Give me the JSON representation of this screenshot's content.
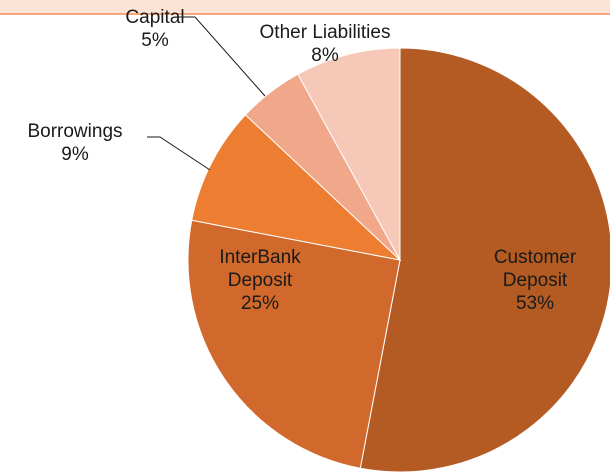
{
  "chart_data": {
    "type": "pie",
    "categories": [
      "Customer Deposit",
      "InterBank Deposit",
      "Borrowings",
      "Capital",
      "Other Liabilities"
    ],
    "values": [
      53,
      25,
      9,
      5,
      8
    ],
    "value_labels": [
      "53%",
      "25%",
      "9%",
      "5%",
      "8%"
    ],
    "colors": [
      "#b35b23",
      "#d0692b",
      "#ed7d31",
      "#f1a78a",
      "#f6c8b8"
    ]
  }
}
